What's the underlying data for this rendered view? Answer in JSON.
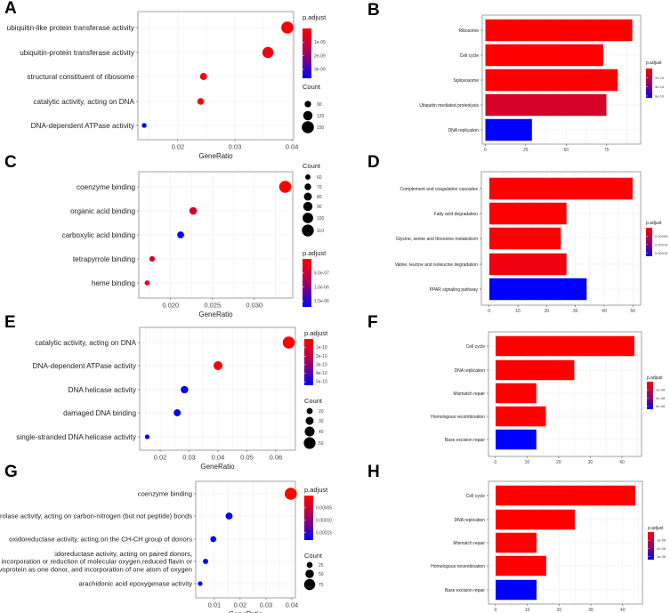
{
  "chart_data": [
    {
      "panel": "A",
      "type": "scatter",
      "xlabel": "GeneRatio",
      "xticks": [
        0.02,
        0.03,
        0.04
      ],
      "xtick_labels": [
        "0.02",
        "0.03",
        "0.04"
      ],
      "xlim": [
        0.013,
        0.0403
      ],
      "categories": [
        "ubiquitin-like protein transferase activity",
        "ubiquitin-protein transferase activity",
        "structural constituent of ribosome",
        "catalytic activity, acting on DNA",
        "DNA-dependent ATPase activity"
      ],
      "gene_ratio": [
        0.0392,
        0.0358,
        0.0245,
        0.024,
        0.0141
      ],
      "count": [
        150,
        140,
        96,
        92,
        72
      ],
      "p_adjust": [
        1e-11,
        2e-10,
        1e-11,
        1e-11,
        3.65e-09
      ],
      "color_legend": {
        "title": "p.adjust",
        "range": [
          0,
          3.65e-09
        ],
        "ticks": [
          1e-09,
          2e-09,
          3e-09
        ],
        "tick_labels": [
          "1e-09",
          "2e-09",
          "3e-09"
        ]
      },
      "size_legend": {
        "title": "Count",
        "values": [
          90,
          120,
          150
        ],
        "labels": [
          "90",
          "120",
          "150"
        ],
        "range": [
          70,
          150
        ]
      },
      "legend_order": [
        "color",
        "size"
      ]
    },
    {
      "panel": "B",
      "type": "bar",
      "categories": [
        "Ribosome",
        "Cell cycle",
        "Spliceosome",
        "Ubiquitin mediated proteolysis",
        "DNA replication"
      ],
      "values": [
        91,
        73,
        82,
        75,
        29
      ],
      "p_adjust": [
        1e-15,
        1e-15,
        1e-13,
        1e-10,
        6.4e-10
      ],
      "xticks": [
        0,
        25,
        50,
        75
      ],
      "xtick_labels": [
        "0",
        "25",
        "50",
        "75"
      ],
      "xlim": [
        -1.8,
        96
      ],
      "color_legend": {
        "title": "p.adjust",
        "range": [
          0,
          6.4e-10
        ],
        "ticks": [
          2e-10,
          4e-10,
          6e-10
        ],
        "tick_labels": [
          "2e-10",
          "4e-10",
          "6e-10"
        ]
      }
    },
    {
      "panel": "C",
      "type": "scatter",
      "xlabel": "GeneRatio",
      "xticks": [
        0.02,
        0.025,
        0.03
      ],
      "xtick_labels": [
        "0.020",
        "0.025",
        "0.030"
      ],
      "xlim": [
        0.0162,
        0.0346
      ],
      "categories": [
        "coenzyme binding",
        "organic acid binding",
        "carboxylic acid binding",
        "tetrapyrrole binding",
        "heme binding"
      ],
      "gene_ratio": [
        0.0337,
        0.0227,
        0.0212,
        0.0178,
        0.0172
      ],
      "count": [
        112,
        78,
        72,
        62,
        58
      ],
      "p_adjust": [
        1e-08,
        3e-07,
        1.7e-06,
        2.5e-07,
        1.5e-07
      ],
      "color_legend": {
        "title": "p.adjust",
        "range": [
          0,
          1.7e-06
        ],
        "ticks": [
          5e-07,
          1e-06,
          1.5e-06
        ],
        "tick_labels": [
          "5.0e-07",
          "1.0e-06",
          "1.5e-06"
        ]
      },
      "size_legend": {
        "title": "Count",
        "values": [
          60,
          70,
          80,
          90,
          100,
          110
        ],
        "labels": [
          "60",
          "70",
          "80",
          "90",
          "100",
          "110"
        ],
        "range": [
          55,
          112
        ]
      },
      "legend_order": [
        "size",
        "color"
      ]
    },
    {
      "panel": "D",
      "type": "bar",
      "categories": [
        "Complement and coagulation cascades",
        "Fatty acid degradation",
        "Glycine, serine and threonine metabolism",
        "Valine, leucine and isoleucine degradation",
        "PPAR signaling pathway"
      ],
      "values": [
        50,
        27,
        25,
        27,
        34
      ],
      "p_adjust": [
        1e-10,
        1e-09,
        1e-09,
        1e-05,
        0.00017
      ],
      "xticks": [
        0,
        10,
        20,
        30,
        40,
        50
      ],
      "xtick_labels": [
        "0",
        "10",
        "20",
        "30",
        "40",
        "50"
      ],
      "xlim": [
        -2.7,
        52.7
      ],
      "color_legend": {
        "title": "p.adjust",
        "range": [
          0,
          0.00017
        ],
        "ticks": [
          5e-05,
          0.0001,
          0.00015
        ],
        "tick_labels": [
          "0.00005",
          "0.00010",
          "0.00015"
        ]
      }
    },
    {
      "panel": "E",
      "type": "scatter",
      "xlabel": "GeneRatio",
      "xticks": [
        0.02,
        0.03,
        0.04,
        0.05,
        0.06
      ],
      "xtick_labels": [
        "0.02",
        "0.03",
        "0.04",
        "0.05",
        "0.06"
      ],
      "xlim": [
        0.0129,
        0.0668
      ],
      "categories": [
        "catalytic activity, acting on DNA",
        "DNA-dependent ATPase activity",
        "DNA helicase activity",
        "damaged DNA binding",
        "single-stranded DNA helicase activity"
      ],
      "gene_ratio": [
        0.0645,
        0.04,
        0.0284,
        0.0259,
        0.0155
      ],
      "count": [
        52,
        35,
        27,
        25,
        12
      ],
      "p_adjust": [
        1e-13,
        1e-12,
        5.4e-10,
        5.4e-10,
        5.4e-10
      ],
      "color_legend": {
        "title": "p.adjust",
        "range": [
          0,
          5.4e-10
        ],
        "ticks": [
          1e-10,
          2e-10,
          3e-10,
          4e-10,
          5e-10
        ],
        "tick_labels": [
          "1e-10",
          "2e-10",
          "3e-10",
          "4e-10",
          "5e-10"
        ]
      },
      "size_legend": {
        "title": "Count",
        "values": [
          20,
          30,
          40,
          50
        ],
        "labels": [
          "20",
          "30",
          "40",
          "50"
        ],
        "range": [
          12,
          52
        ]
      },
      "legend_order": [
        "color",
        "size"
      ]
    },
    {
      "panel": "F",
      "type": "bar",
      "categories": [
        "Cell cycle",
        "DNA replication",
        "Mismatch repair",
        "Homologous recombination",
        "Base excision repair"
      ],
      "values": [
        44,
        25,
        13,
        16,
        13
      ],
      "p_adjust": [
        1e-12,
        1e-12,
        1e-12,
        1e-12,
        3.4e-08
      ],
      "xticks": [
        0,
        10,
        20,
        30,
        40
      ],
      "xtick_labels": [
        "0",
        "10",
        "20",
        "30",
        "40"
      ],
      "xlim": [
        -2.2,
        46.2
      ],
      "color_legend": {
        "title": "p.adjust",
        "range": [
          0,
          3.4e-08
        ],
        "ticks": [
          1e-08,
          2e-08,
          3e-08
        ],
        "tick_labels": [
          "1e-08",
          "2e-08",
          "3e-08"
        ]
      }
    },
    {
      "panel": "G",
      "type": "scatter",
      "xlabel": "GeneRatio",
      "xticks": [
        0.01,
        0.02,
        0.03,
        0.04
      ],
      "xtick_labels": [
        "0.01",
        "0.02",
        "0.03",
        "0.04"
      ],
      "xlim": [
        0.0028,
        0.0414
      ],
      "categories": [
        "coenzyme binding",
        "hydrolase activity, acting on carbon-nitrogen (but not peptide) bonds",
        "oxidoreductase activity, acting on the CH-CH group of donors",
        ":idoreductase activity, acting on paired donors,\nwith incorporation or reduction of molecular oxygen,reduced flavin or\nflavoprotein as one donor, and incorporation of one atom of oxygen",
        "arachidonic acid epoxygenase activity"
      ],
      "gene_ratio": [
        0.0396,
        0.0157,
        0.0096,
        0.0066,
        0.0045
      ],
      "count": [
        85,
        35,
        25,
        18,
        12
      ],
      "p_adjust": [
        1e-09,
        0.00018,
        0.00018,
        0.00018,
        0.00018
      ],
      "color_legend": {
        "title": "p.adjust",
        "range": [
          0,
          0.00018
        ],
        "ticks": [
          5e-05,
          0.0001,
          0.00015
        ],
        "tick_labels": [
          "0.00005",
          "0.00010",
          "0.00015"
        ]
      },
      "size_legend": {
        "title": "Count",
        "values": [
          25,
          50,
          75
        ],
        "labels": [
          "25",
          "50",
          "75"
        ],
        "range": [
          12,
          85
        ]
      },
      "legend_order": [
        "color",
        "size"
      ]
    },
    {
      "panel": "H",
      "type": "bar",
      "categories": [
        "Cell cycle",
        "DNA replication",
        "Mismatch repair",
        "Homologous recombination",
        "Base excision repair"
      ],
      "values": [
        44,
        25,
        13,
        16,
        13
      ],
      "p_adjust": [
        1e-12,
        1e-12,
        1e-12,
        1e-12,
        3.4e-08
      ],
      "xticks": [
        0,
        10,
        20,
        30,
        40
      ],
      "xtick_labels": [
        "0",
        "10",
        "20",
        "30",
        "40"
      ],
      "xlim": [
        -2.2,
        46.2
      ],
      "color_legend": {
        "title": "p.adjust",
        "range": [
          0,
          3.4e-08
        ],
        "ticks": [
          1e-08,
          2e-08,
          3e-08
        ],
        "tick_labels": [
          "1e-08",
          "2e-08",
          "3e-08"
        ]
      }
    }
  ]
}
